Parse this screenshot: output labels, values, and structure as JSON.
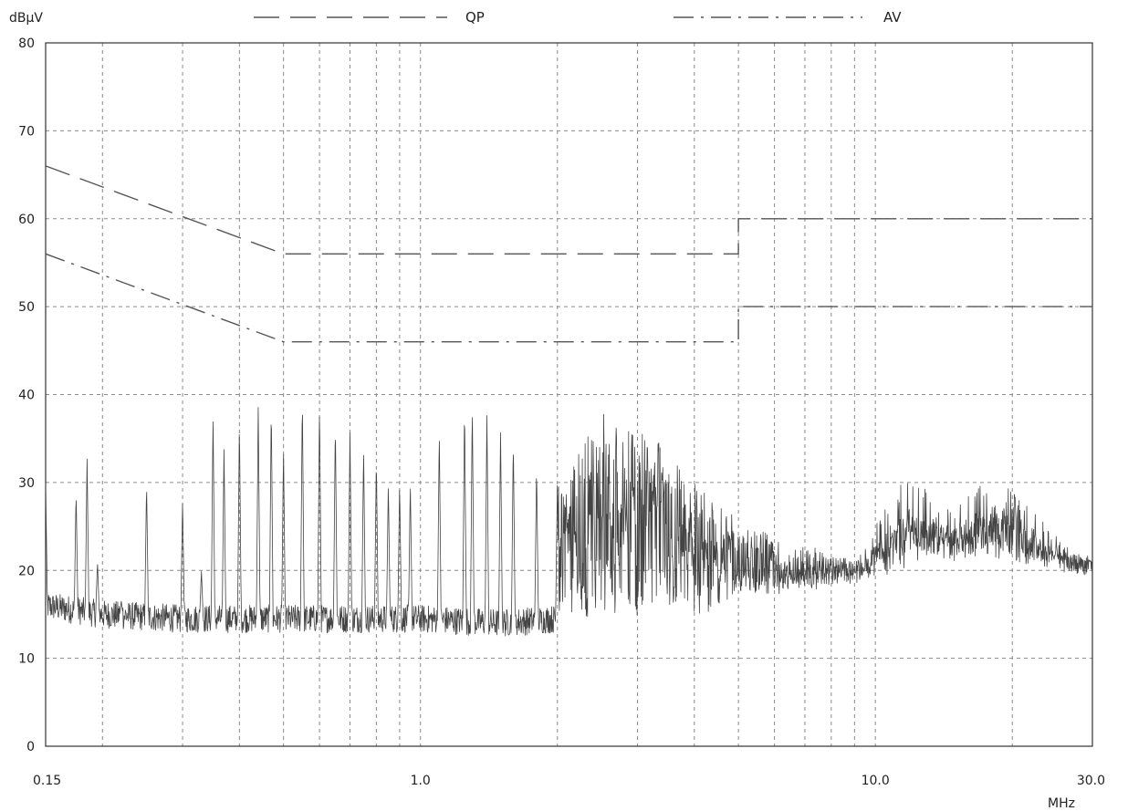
{
  "chart_data": {
    "type": "line",
    "ylabel": "dBµV",
    "xlabel": "MHz",
    "x_scale": "log",
    "xlim": [
      0.15,
      30.0
    ],
    "ylim": [
      0,
      80
    ],
    "grid": true,
    "legend_position": "top",
    "x_tick_labels": [
      {
        "value": 0.15,
        "label": "0.15"
      },
      {
        "value": 1.0,
        "label": "1.0"
      },
      {
        "value": 10.0,
        "label": "10.0"
      },
      {
        "value": 30.0,
        "label": "30.0"
      }
    ],
    "y_ticks": [
      0,
      10,
      20,
      30,
      40,
      50,
      60,
      70,
      80
    ],
    "x_gridlines": [
      0.2,
      0.3,
      0.4,
      0.5,
      0.6,
      0.7,
      0.8,
      0.9,
      1.0,
      2.0,
      3.0,
      4.0,
      5.0,
      6.0,
      7.0,
      8.0,
      9.0,
      10.0,
      20.0
    ],
    "series": [
      {
        "name": "QP",
        "style": "long-dash",
        "color": "#555555",
        "points": [
          [
            0.15,
            66
          ],
          [
            0.5,
            56
          ],
          [
            5.0,
            56
          ],
          [
            5.0,
            60
          ],
          [
            30.0,
            60
          ]
        ]
      },
      {
        "name": "AV",
        "style": "dash-dot",
        "color": "#555555",
        "points": [
          [
            0.15,
            56
          ],
          [
            0.5,
            46
          ],
          [
            5.0,
            46
          ],
          [
            5.0,
            50
          ],
          [
            30.0,
            50
          ]
        ]
      },
      {
        "style": "solid",
        "color": "#444444",
        "floor": [
          [
            0.15,
            16
          ],
          [
            0.2,
            15
          ],
          [
            0.3,
            14.5
          ],
          [
            0.5,
            14.5
          ],
          [
            1.0,
            14.5
          ],
          [
            1.5,
            14
          ],
          [
            2.0,
            14.5
          ],
          [
            3.0,
            15
          ],
          [
            4.0,
            15.5
          ],
          [
            5.0,
            17
          ],
          [
            6.0,
            18
          ],
          [
            8.0,
            19
          ],
          [
            10.0,
            20
          ],
          [
            13.0,
            22
          ],
          [
            18.0,
            22
          ],
          [
            30.0,
            20
          ]
        ],
        "peaks": [
          [
            0.15,
            30
          ],
          [
            0.175,
            29
          ],
          [
            0.185,
            33
          ],
          [
            0.195,
            21
          ],
          [
            0.22,
            16.5
          ],
          [
            0.25,
            30
          ],
          [
            0.3,
            28
          ],
          [
            0.33,
            20
          ],
          [
            0.35,
            38
          ],
          [
            0.37,
            34
          ],
          [
            0.4,
            37
          ],
          [
            0.44,
            39
          ],
          [
            0.47,
            39
          ],
          [
            0.5,
            34
          ],
          [
            0.55,
            40
          ],
          [
            0.6,
            39
          ],
          [
            0.65,
            37
          ],
          [
            0.7,
            36
          ],
          [
            0.75,
            34
          ],
          [
            0.8,
            33
          ],
          [
            0.85,
            30
          ],
          [
            0.9,
            30
          ],
          [
            0.95,
            30
          ],
          [
            1.1,
            36
          ],
          [
            1.25,
            39
          ],
          [
            1.3,
            39
          ],
          [
            1.4,
            38
          ],
          [
            1.5,
            36
          ],
          [
            1.6,
            35
          ],
          [
            1.8,
            32
          ],
          [
            2.0,
            30
          ],
          [
            2.3,
            36
          ],
          [
            2.5,
            38
          ],
          [
            2.7,
            37
          ],
          [
            3.0,
            36
          ],
          [
            3.3,
            35
          ],
          [
            3.6,
            33
          ],
          [
            4.0,
            31
          ],
          [
            4.5,
            28
          ],
          [
            5.0,
            26
          ],
          [
            5.5,
            25
          ],
          [
            6.0,
            24
          ],
          [
            6.5,
            22
          ],
          [
            7.0,
            23
          ],
          [
            8.0,
            22
          ],
          [
            9.0,
            21
          ],
          [
            10.0,
            25
          ],
          [
            11.0,
            29
          ],
          [
            12.0,
            31
          ],
          [
            13.0,
            29
          ],
          [
            15.0,
            27
          ],
          [
            17.0,
            30
          ],
          [
            18.0,
            31
          ],
          [
            20.0,
            29
          ],
          [
            23.0,
            26
          ],
          [
            26.0,
            23
          ],
          [
            30.0,
            21
          ]
        ]
      }
    ],
    "legend": [
      {
        "label": "QP",
        "style": "long-dash"
      },
      {
        "label": "AV",
        "style": "dash-dot"
      }
    ]
  }
}
